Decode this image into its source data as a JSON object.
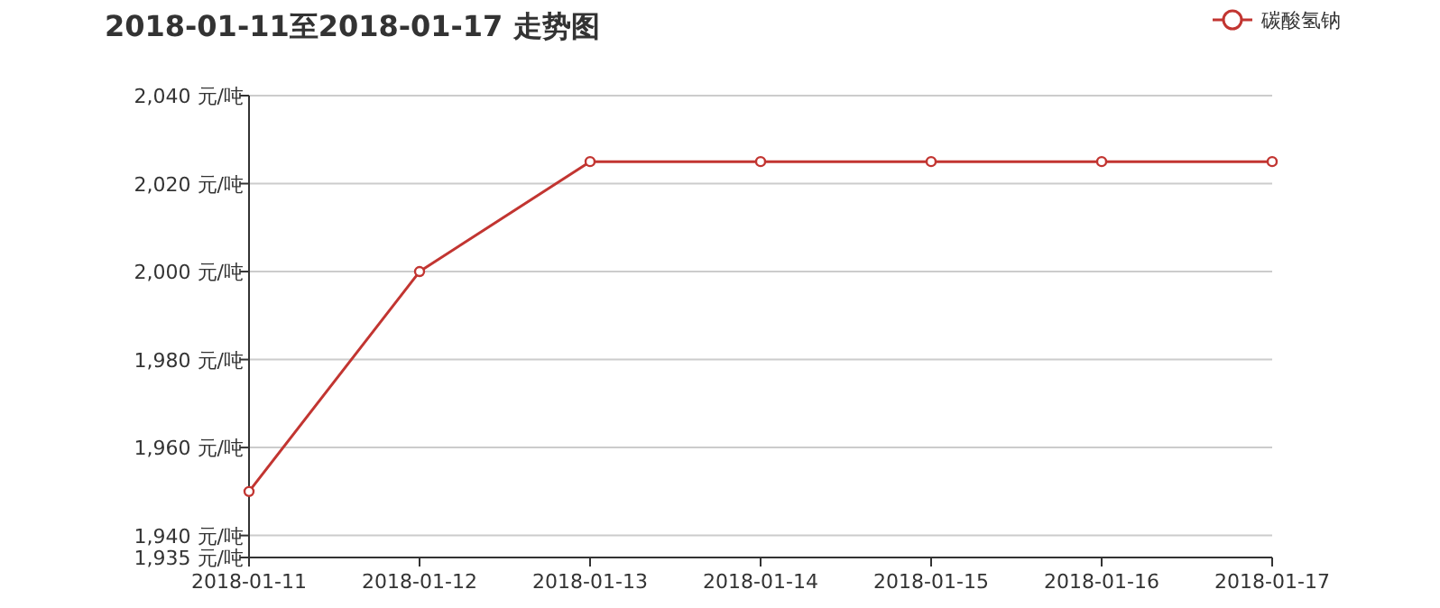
{
  "chart_data": {
    "type": "line",
    "title": "2018-01-11至2018-01-17 走势图",
    "categories": [
      "2018-01-11",
      "2018-01-12",
      "2018-01-13",
      "2018-01-14",
      "2018-01-15",
      "2018-01-16",
      "2018-01-17"
    ],
    "series": [
      {
        "name": "碳酸氢钠",
        "color": "#c23531",
        "values": [
          1950,
          2000,
          2025,
          2025,
          2025,
          2025,
          2025
        ]
      }
    ],
    "ylim": [
      1935,
      2040
    ],
    "yticks": [
      {
        "value": 1935,
        "label": "1,935 元/吨"
      },
      {
        "value": 1940,
        "label": "1,940 元/吨"
      },
      {
        "value": 1960,
        "label": "1,960 元/吨"
      },
      {
        "value": 1980,
        "label": "1,980 元/吨"
      },
      {
        "value": 2000,
        "label": "2,000 元/吨"
      },
      {
        "value": 2020,
        "label": "2,020 元/吨"
      },
      {
        "value": 2040,
        "label": "2,040 元/吨"
      }
    ],
    "grid": "y",
    "legend": "top right",
    "marker": "circle",
    "line_style": "solid"
  }
}
